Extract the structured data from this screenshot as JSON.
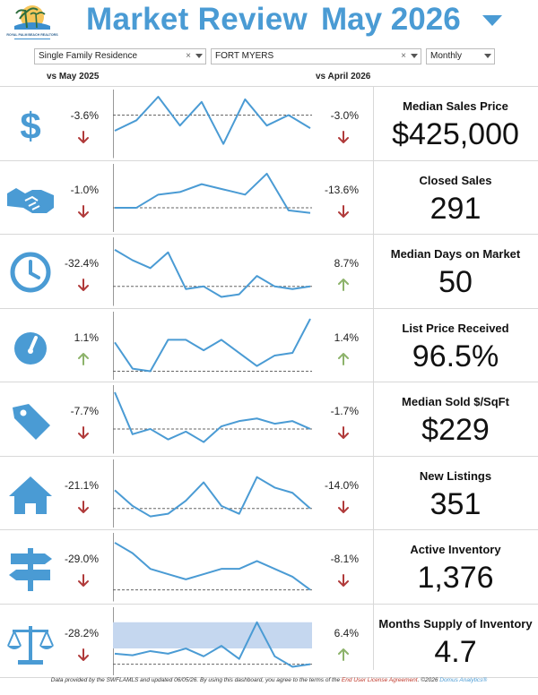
{
  "header": {
    "title": "Market Review",
    "month": "May 2026",
    "logo_text": "ROYAL PALM BEACH REALTORS"
  },
  "filters": {
    "property_type": "Single Family Residence",
    "area": "FORT MYERS",
    "period": "Monthly"
  },
  "columns": {
    "yoy": "vs May 2025",
    "mom": "vs April 2026"
  },
  "colors": {
    "accent": "#4a9bd4",
    "down_arrow": "#b03a3a",
    "up_arrow": "#8db36b",
    "band": "#c5d7ef"
  },
  "metrics": [
    {
      "icon": "dollar-icon",
      "label": "Median Sales Price",
      "value": "$425,000",
      "yoy": "-3.6%",
      "yoy_dir": "down",
      "mom": "-3.0%",
      "mom_dir": "down",
      "trend": [
        0.35,
        0.55,
        1.0,
        0.45,
        0.9,
        0.1,
        0.95,
        0.45,
        0.65,
        0.4
      ],
      "reference": 0.65
    },
    {
      "icon": "handshake-icon",
      "label": "Closed Sales",
      "value": "291",
      "yoy": "-1.0%",
      "yoy_dir": "down",
      "mom": "-13.6%",
      "mom_dir": "down",
      "trend": [
        0.3,
        0.3,
        0.55,
        0.6,
        0.75,
        0.65,
        0.55,
        0.95,
        0.25,
        0.2
      ],
      "reference": 0.3
    },
    {
      "icon": "clock-icon",
      "label": "Median Days on Market",
      "value": "50",
      "yoy": "-32.4%",
      "yoy_dir": "down",
      "mom": "8.7%",
      "mom_dir": "up",
      "trend": [
        0.9,
        0.7,
        0.55,
        0.85,
        0.15,
        0.2,
        0.0,
        0.05,
        0.4,
        0.2,
        0.15,
        0.2
      ],
      "reference": 0.2
    },
    {
      "icon": "gauge-icon",
      "label": "List Price Received",
      "value": "96.5%",
      "yoy": "1.1%",
      "yoy_dir": "up",
      "mom": "1.4%",
      "mom_dir": "up",
      "trend": [
        0.55,
        0.05,
        0.0,
        0.6,
        0.6,
        0.4,
        0.6,
        0.35,
        0.1,
        0.3,
        0.35,
        1.0
      ],
      "reference": 0.0
    },
    {
      "icon": "price-tag-icon",
      "label": "Median Sold $/SqFt",
      "value": "$229",
      "yoy": "-7.7%",
      "yoy_dir": "down",
      "mom": "-1.7%",
      "mom_dir": "down",
      "trend": [
        1.0,
        0.2,
        0.3,
        0.1,
        0.25,
        0.05,
        0.35,
        0.45,
        0.5,
        0.4,
        0.45,
        0.3
      ],
      "reference": 0.3
    },
    {
      "icon": "house-icon",
      "label": "New Listings",
      "value": "351",
      "yoy": "-21.1%",
      "yoy_dir": "down",
      "mom": "-14.0%",
      "mom_dir": "down",
      "trend": [
        0.55,
        0.25,
        0.05,
        0.1,
        0.35,
        0.7,
        0.25,
        0.1,
        0.8,
        0.6,
        0.5,
        0.2
      ],
      "reference": 0.2
    },
    {
      "icon": "signpost-icon",
      "label": "Active Inventory",
      "value": "1,376",
      "yoy": "-29.0%",
      "yoy_dir": "down",
      "mom": "-8.1%",
      "mom_dir": "down",
      "trend": [
        0.95,
        0.75,
        0.45,
        0.35,
        0.25,
        0.35,
        0.45,
        0.45,
        0.6,
        0.45,
        0.3,
        0.05
      ],
      "reference": 0.05
    },
    {
      "icon": "balance-scale-icon",
      "label": "Months Supply of Inventory",
      "value": "4.7",
      "yoy": "-28.2%",
      "yoy_dir": "down",
      "mom": "6.4%",
      "mom_dir": "up",
      "trend": [
        0.25,
        0.22,
        0.3,
        0.25,
        0.35,
        0.2,
        0.4,
        0.15,
        0.85,
        0.2,
        0.0,
        0.05
      ],
      "reference": 0.05,
      "band": [
        0.35,
        0.85
      ]
    }
  ],
  "footer": {
    "text_a": "Data provided by the SWFLAMLS and updated 06/05/26.  By using this dashboard, you agree to the terms of the ",
    "link": "End User License Agreement",
    "text_b": ".  ©2026 ",
    "brand": "Domus Analytics®"
  }
}
